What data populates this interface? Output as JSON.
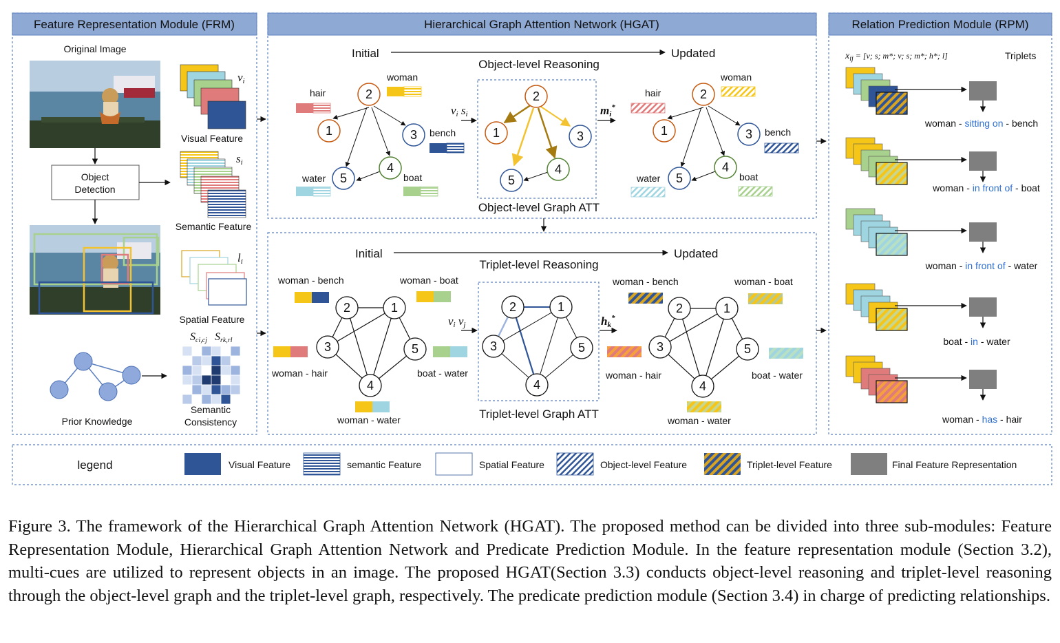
{
  "frm": {
    "title": "Feature Representation Module (FRM)",
    "original_image": "Original Image",
    "object_detection_1": "Object",
    "object_detection_2": "Detection",
    "visual_feature": "Visual Feature",
    "semantic_feature": "Semantic Feature",
    "spatial_feature": "Spatial Feature",
    "prior_knowledge": "Prior Knowledge",
    "semantic_consistency_1": "Semantic",
    "semantic_consistency_2": "Consistency",
    "sym_v": "v",
    "sym_v_sub": "i",
    "sym_s": "s",
    "sym_s_sub": "i",
    "sym_l": "l",
    "sym_l_sub": "i",
    "sym_S1": "S",
    "sym_S1_sub": "ci,cj",
    "sym_S2": "S",
    "sym_S2_sub": "rk,rl"
  },
  "hgat": {
    "title": "Hierarchical Graph Attention Network (HGAT)",
    "initial": "Initial",
    "updated": "Updated",
    "object_reasoning": "Object-level Reasoning",
    "object_graph_att": "Object-level Graph ATT",
    "triplet_reasoning": "Triplet-level Reasoning",
    "triplet_graph_att": "Triplet-level Graph ATT",
    "vs_label": "v",
    "vs_sub1": "i",
    "vs_label2": "s",
    "vs_sub2": "i",
    "m_label": "m",
    "m_sub": "i",
    "vv_label": "v",
    "vv_sub1": "i",
    "vv_label2": "v",
    "vv_sub2": "j",
    "h_label": "h",
    "h_sub": "k",
    "star": "*",
    "obj_nodes": [
      "2",
      "1",
      "3",
      "5",
      "4"
    ],
    "obj_names": [
      "hair",
      "woman",
      "bench",
      "water",
      "boat"
    ],
    "triplet_names": [
      "woman - bench",
      "woman - boat",
      "woman - hair",
      "boat - water",
      "woman - water"
    ]
  },
  "rpm": {
    "title": "Relation Prediction Module (RPM)",
    "formula_x": "x",
    "formula_sub": "ij",
    "formula_rhs": " = [v; s; m*; v; s; m*; h*; l]",
    "triplets": "Triplets",
    "relations": [
      {
        "subj": "woman - ",
        "pred": "sitting on",
        "obj": " - bench"
      },
      {
        "subj": "woman - ",
        "pred": "in front of",
        "obj": " - boat"
      },
      {
        "subj": "woman - ",
        "pred": "in front of",
        "obj": " - water"
      },
      {
        "subj": "boat - ",
        "pred": "in",
        "obj": " - water"
      },
      {
        "subj": "woman - ",
        "pred": "has",
        "obj": " - hair"
      }
    ]
  },
  "legend": {
    "title": "legend",
    "items": [
      "Visual Feature",
      "semantic Feature",
      "Spatial Feature",
      "Object-level Feature",
      "Triplet-level Feature",
      "Final Feature Representation"
    ]
  },
  "caption": "Figure 3. The framework of the Hierarchical Graph Attention Network (HGAT). The proposed method can be divided into three sub-modules: Feature Representation Module, Hierarchical Graph Attention Network and Predicate Prediction Module. In the feature representation module (Section 3.2), multi-cues are utilized to represent objects in an image. The proposed HGAT(Section 3.3) conducts object-level reasoning and triplet-level reasoning through the object-level graph and the triplet-level graph, respectively. The predicate prediction module (Section 3.4) in charge of predicting relationships.",
  "colors": {
    "panel_header": "#8ea9d4",
    "visual_blue": "#2f5597",
    "woman_yellow": "#f5c518",
    "hair_red": "#e07b7b",
    "water_cyan": "#9fd5e0",
    "boat_green": "#a9d18e",
    "node_orange": "#c55a11",
    "node_blue": "#2f5597",
    "node_green": "#548235",
    "gray_final": "#7f7f7f"
  }
}
